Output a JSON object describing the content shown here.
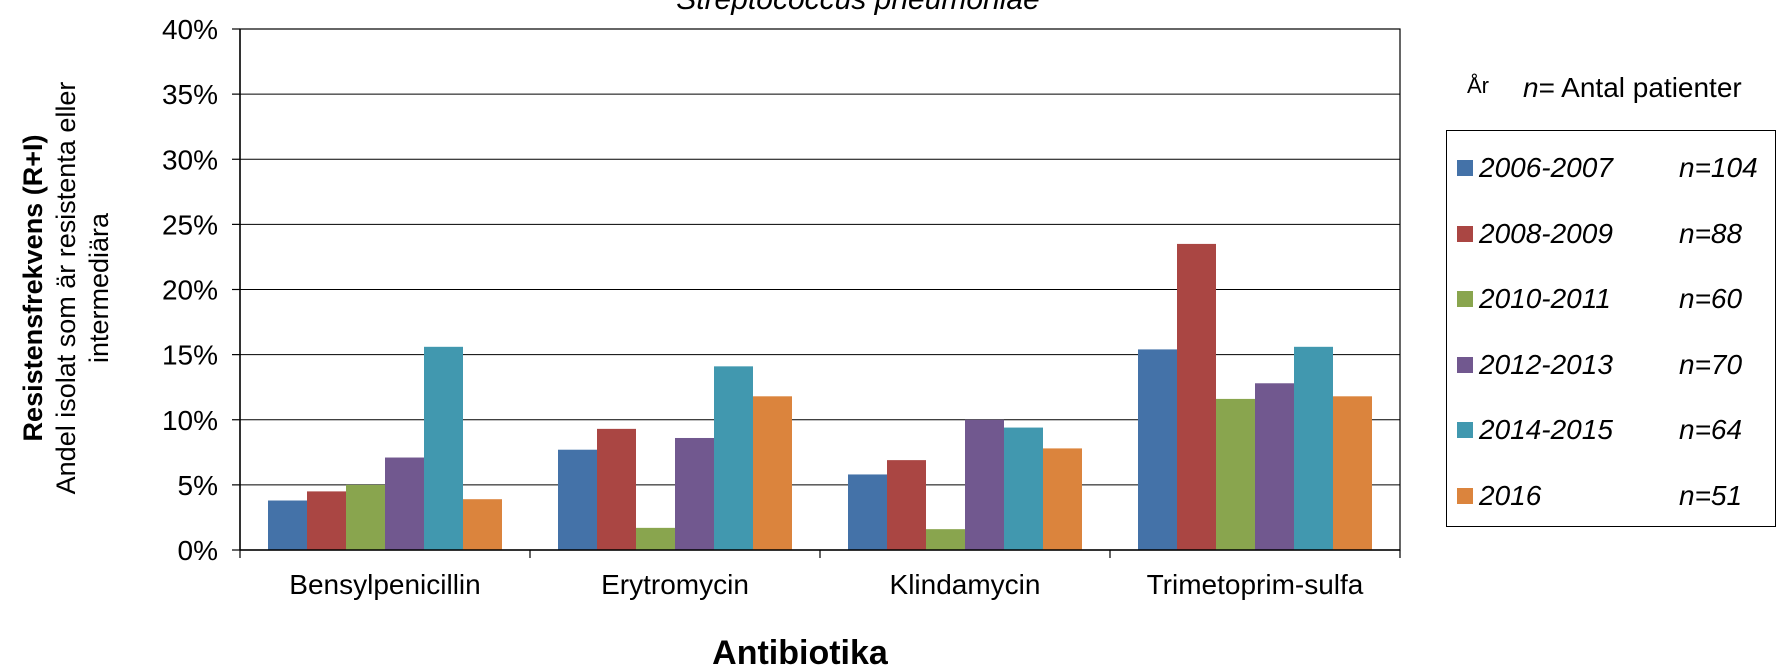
{
  "chart_data": {
    "type": "bar",
    "title": "Streptococcus pneumoniae",
    "ylabel_bold": "Resistensfrekvens (R+I)",
    "ylabel_line2": "Andel isolat som är resistenta eller",
    "ylabel_line3": "intermediära",
    "xlabel": "Antibiotika",
    "ylim": [
      0,
      40
    ],
    "y_ticks": [
      "0%",
      "5%",
      "10%",
      "15%",
      "20%",
      "25%",
      "30%",
      "35%",
      "40%"
    ],
    "categories": [
      "Bensylpenicillin",
      "Erytromycin",
      "Klindamycin",
      "Trimetoprim-sulfa"
    ],
    "series": [
      {
        "name": "2006-2007",
        "n_label": "n=104",
        "color": "#4472A8",
        "values": [
          3.8,
          7.7,
          5.8,
          15.4
        ]
      },
      {
        "name": "2008-2009",
        "n_label": "n=88",
        "color": "#AA4643",
        "values": [
          4.5,
          9.3,
          6.9,
          23.5
        ]
      },
      {
        "name": "2010-2011",
        "n_label": "n=60",
        "color": "#89A54E",
        "values": [
          5.0,
          1.7,
          1.6,
          11.6
        ]
      },
      {
        "name": "2012-2013",
        "n_label": "n=70",
        "color": "#71588F",
        "values": [
          7.1,
          8.6,
          10.0,
          12.8
        ]
      },
      {
        "name": "2014-2015",
        "n_label": "n=64",
        "color": "#4198AF",
        "values": [
          15.6,
          14.1,
          9.4,
          15.6
        ]
      },
      {
        "name": "2016",
        "n_label": "n=51",
        "color": "#DB843D",
        "values": [
          3.9,
          11.8,
          7.8,
          11.8
        ]
      }
    ],
    "grid": true,
    "legend_position": "right"
  },
  "legend": {
    "year_label": "År",
    "n_label": "n",
    "n_suffix": "= Antal patienter"
  }
}
